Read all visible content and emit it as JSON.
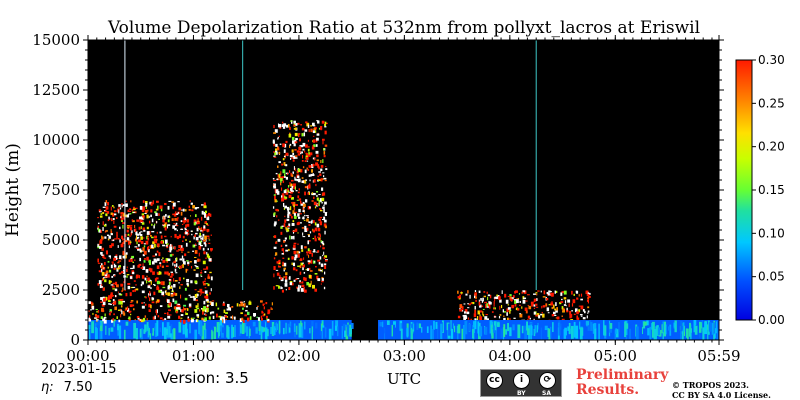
{
  "chart_data": {
    "type": "heatmap",
    "title": "Volume Depolarization Ratio at 532nm from pollyxt_lacros at Eriswil",
    "xlabel": "UTC",
    "ylabel": "Height (m)",
    "x_ticks": [
      "00:00",
      "01:00",
      "02:00",
      "03:00",
      "04:00",
      "05:00",
      "05:59"
    ],
    "x_range_minutes": [
      0,
      359
    ],
    "y_ticks": [
      0,
      2500,
      5000,
      7500,
      10000,
      12500,
      15000
    ],
    "ylim": [
      0,
      15000
    ],
    "colorbar": {
      "ticks": [
        "0.00",
        "0.05",
        "0.10",
        "0.15",
        "0.20",
        "0.25",
        "0.30"
      ],
      "range": [
        0,
        0.3
      ],
      "colormap": "jet"
    },
    "background_color": "#000000",
    "data_gaps_utc": [
      [
        "02:33",
        "02:43"
      ]
    ],
    "vertical_stripe_times_utc": [
      "00:21",
      "01:28",
      "04:15"
    ],
    "features": [
      {
        "description_time": [
          "00:00",
          "02:30"
        ],
        "height_m": [
          0,
          1000
        ],
        "depol": 0.05
      },
      {
        "description_time": [
          "00:00",
          "01:45"
        ],
        "height_m": [
          1000,
          2000
        ],
        "depol": 0.28
      },
      {
        "description_time": [
          "00:05",
          "01:10"
        ],
        "height_m": [
          2000,
          7000
        ],
        "depol": 0.3
      },
      {
        "description_time": [
          "01:45",
          "02:15"
        ],
        "height_m": [
          2500,
          11000
        ],
        "depol": 0.3
      },
      {
        "description_time": [
          "03:30",
          "04:45"
        ],
        "height_m": [
          1000,
          2500
        ],
        "depol": 0.3
      },
      {
        "description_time": [
          "02:45",
          "05:59"
        ],
        "height_m": [
          0,
          1000
        ],
        "depol": 0.05
      }
    ]
  },
  "footer": {
    "date": "2023-01-15",
    "eta_symbol": "η:",
    "eta_value": "7.50",
    "version": "Version: 3.5",
    "license_labels": [
      "BY",
      "SA"
    ],
    "prelim_line1": "Preliminary",
    "prelim_line2": "Results.",
    "copyright_line1": "© TROPOS 2023.",
    "copyright_line2": "CC BY SA 4.0 License."
  }
}
